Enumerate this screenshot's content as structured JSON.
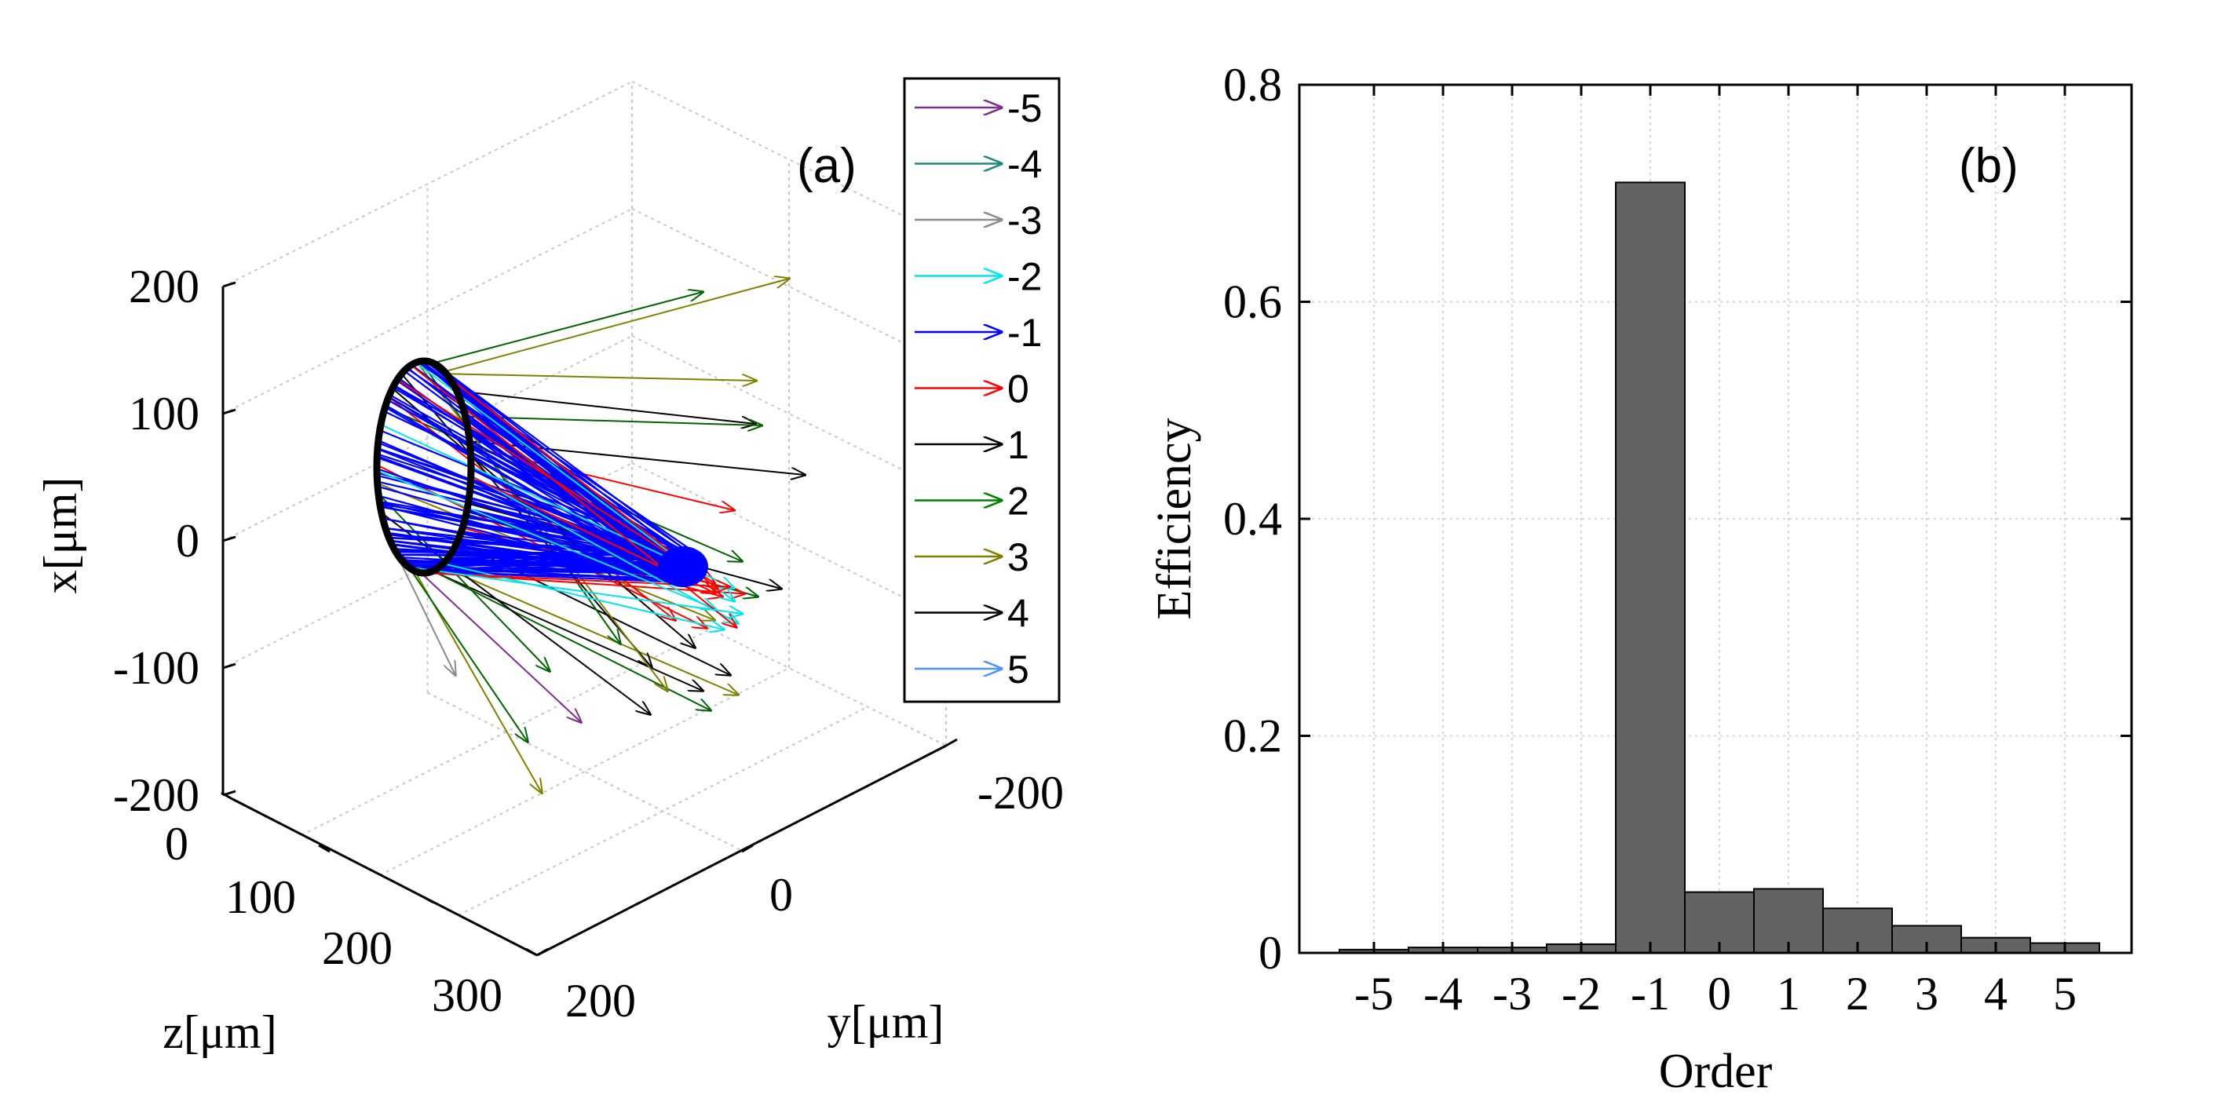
{
  "panel_a": {
    "label": "(a)",
    "type": "3d-quiver",
    "xlabel": "x[μm]",
    "ylabel": "y[μm]",
    "zlabel": "z[μm]",
    "x_ticks": [
      "200",
      "100",
      "0",
      "-100",
      "-200"
    ],
    "y_ticks": [
      "-200",
      "0",
      "200"
    ],
    "z_ticks": [
      "0",
      "100",
      "200",
      "300"
    ],
    "legend": [
      {
        "label": "-5",
        "color": "#7e2f8e"
      },
      {
        "label": "-4",
        "color": "#1f8a7a"
      },
      {
        "label": "-3",
        "color": "#8c8c8c"
      },
      {
        "label": "-2",
        "color": "#00e5ee"
      },
      {
        "label": "-1",
        "color": "#0000ff"
      },
      {
        "label": "0",
        "color": "#ff0000"
      },
      {
        "label": "1",
        "color": "#000000"
      },
      {
        "label": "2",
        "color": "#008000"
      },
      {
        "label": "3",
        "color": "#808000"
      },
      {
        "label": "4",
        "color": "#000000"
      },
      {
        "label": "5",
        "color": "#4d94ff"
      }
    ]
  },
  "chart_data": {
    "type": "bar",
    "label": "(b)",
    "categories": [
      "-5",
      "-4",
      "-3",
      "-2",
      "-1",
      "0",
      "1",
      "2",
      "3",
      "4",
      "5"
    ],
    "values": [
      0.003,
      0.005,
      0.005,
      0.008,
      0.71,
      0.056,
      0.059,
      0.041,
      0.025,
      0.014,
      0.009
    ],
    "xlabel": "Order",
    "ylabel": "Efficiency",
    "ylim": [
      0,
      0.8
    ],
    "yticks": [
      "0",
      "0.2",
      "0.4",
      "0.6",
      "0.8"
    ],
    "grid": true,
    "bar_color": "#636363"
  }
}
